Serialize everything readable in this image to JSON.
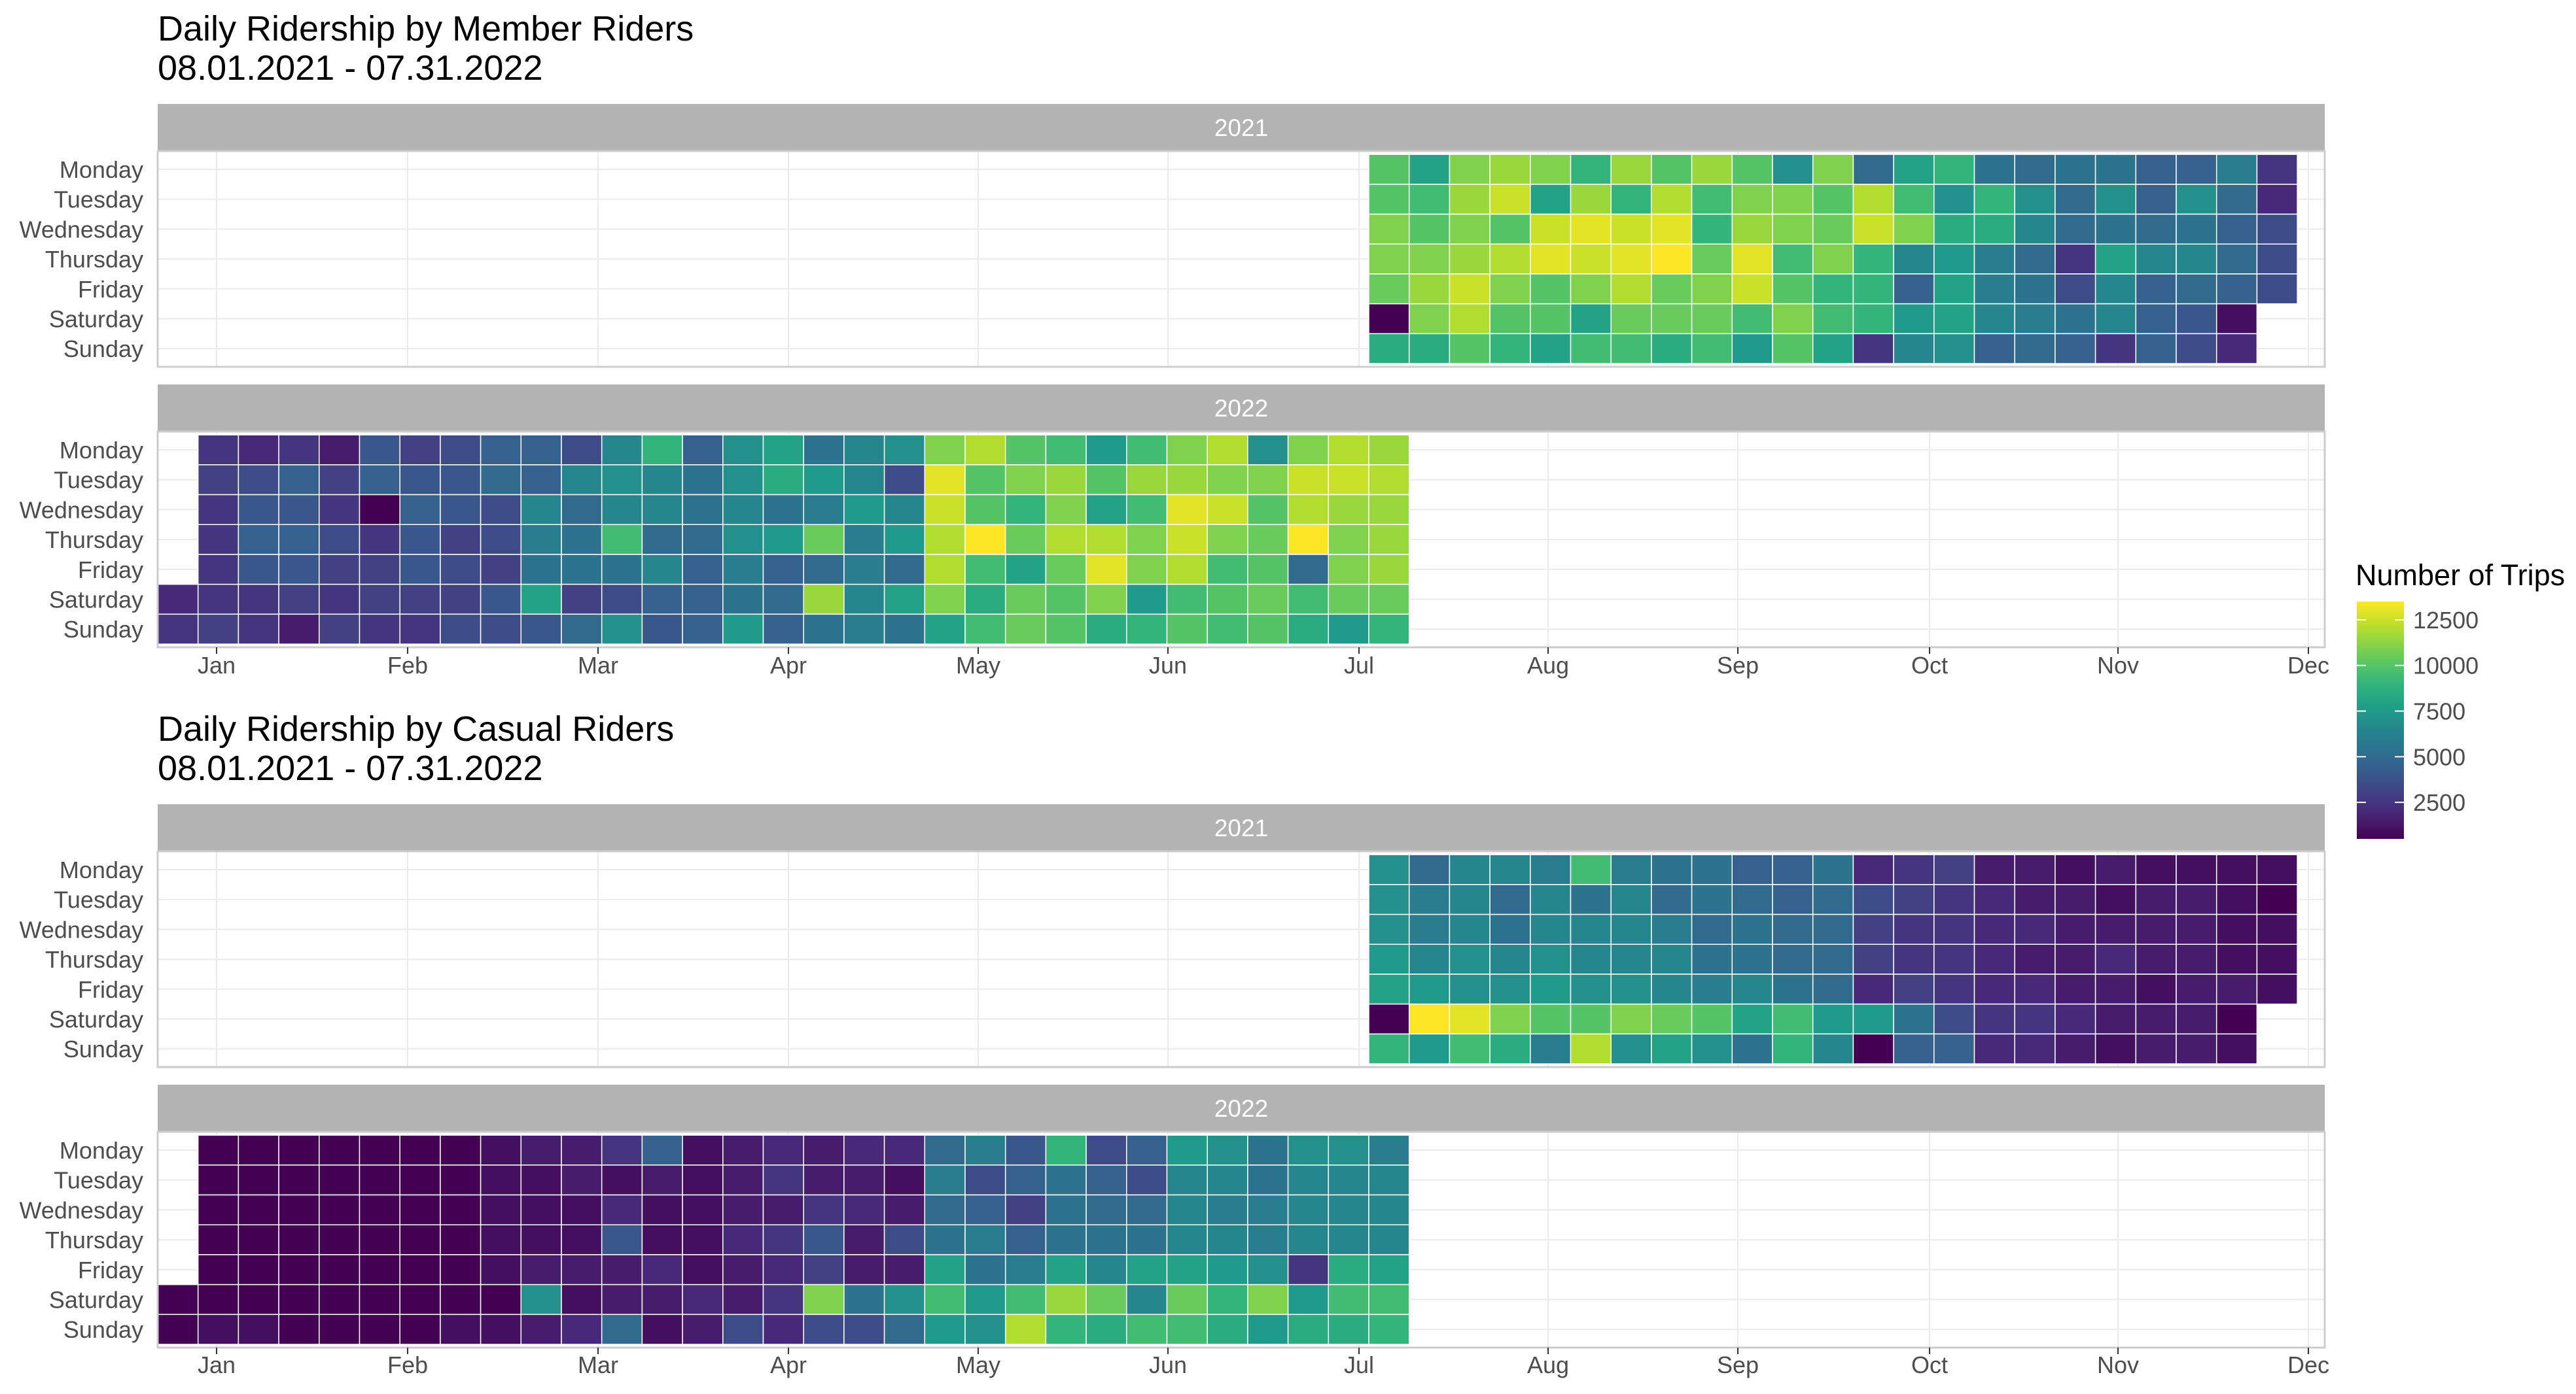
{
  "chart_data": [
    {
      "type": "heatmap",
      "title": "Daily Ridership by Member Riders",
      "subtitle": " 08.01.2021 - 07.31.2022",
      "rows": [
        "Monday",
        "Tuesday",
        "Wednesday",
        "Thursday",
        "Friday",
        "Saturday",
        "Sunday"
      ],
      "x_ticks": [
        "Jan",
        "Feb",
        "Mar",
        "Apr",
        "May",
        "Jun",
        "Jul",
        "Aug",
        "Sep",
        "Oct",
        "Nov",
        "Dec"
      ],
      "panels": [
        {
          "label": "2021",
          "start_week": 31,
          "values": [
            [
              10000,
              8000,
              11000,
              11500,
              11000,
              9000,
              11500,
              10000,
              11500,
              10000,
              7000,
              11000,
              5000,
              8000,
              9000,
              5500,
              5000,
              5500,
              5500,
              4500,
              4500,
              6000,
              2500
            ],
            [
              10000,
              9500,
              11500,
              12500,
              8000,
              11500,
              9000,
              12000,
              9500,
              11000,
              11000,
              10000,
              12000,
              9500,
              7000,
              9000,
              7000,
              5000,
              7000,
              4500,
              7000,
              5000,
              2000
            ],
            [
              11000,
              10000,
              11000,
              10000,
              12500,
              13000,
              12500,
              13000,
              9000,
              11500,
              11000,
              10500,
              12500,
              11000,
              8500,
              8500,
              6500,
              5000,
              5500,
              5000,
              5500,
              4500,
              3500
            ],
            [
              11000,
              11000,
              11500,
              12000,
              13000,
              12500,
              13000,
              13500,
              10500,
              13000,
              9500,
              11000,
              9000,
              6500,
              7500,
              6000,
              5000,
              2500,
              8000,
              6500,
              6500,
              5000,
              3500
            ],
            [
              10500,
              11500,
              12500,
              11000,
              10000,
              11000,
              12000,
              10500,
              11000,
              12500,
              10000,
              9000,
              9000,
              4500,
              8000,
              6000,
              5500,
              3500,
              6500,
              4500,
              5000,
              4500,
              3500
            ],
            [
              500,
              11000,
              12000,
              10000,
              10000,
              8000,
              10500,
              10500,
              10500,
              9500,
              11000,
              9500,
              9000,
              7500,
              8000,
              6500,
              6000,
              5500,
              6500,
              4500,
              4000,
              1000,
              null
            ],
            [
              8500,
              8500,
              10000,
              9000,
              8000,
              9500,
              9500,
              8500,
              9500,
              7500,
              10000,
              8000,
              2500,
              6500,
              7000,
              4500,
              5000,
              4500,
              2500,
              4500,
              3500,
              2000,
              null
            ]
          ]
        },
        {
          "label": "2022",
          "start_week": 1,
          "values": [
            [
              null,
              2500,
              2000,
              2500,
              1500,
              4000,
              3000,
              3500,
              4500,
              4500,
              3500,
              6500,
              9000,
              4500,
              7000,
              8000,
              5500,
              6500,
              7000,
              11000,
              12000,
              10000,
              9500,
              7500,
              9500,
              11000,
              12000,
              7000,
              11000,
              12000,
              11500
            ],
            [
              null,
              3000,
              3500,
              4500,
              3000,
              4500,
              4000,
              4000,
              5000,
              4500,
              6500,
              7000,
              6500,
              5500,
              7000,
              8500,
              7500,
              6500,
              3500,
              13000,
              10000,
              11000,
              11500,
              10000,
              11500,
              11500,
              11000,
              11000,
              12500,
              12500,
              12000
            ],
            [
              null,
              2500,
              4000,
              4000,
              2500,
              500,
              4500,
              4000,
              3500,
              6500,
              5000,
              6500,
              6500,
              5500,
              6500,
              5500,
              6000,
              7500,
              6500,
              12500,
              10000,
              9000,
              11000,
              8000,
              9500,
              13000,
              12500,
              10000,
              12000,
              11500,
              11500
            ],
            [
              null,
              2500,
              4500,
              4500,
              3500,
              2500,
              4000,
              3000,
              3500,
              6000,
              5500,
              9500,
              5000,
              5000,
              7000,
              7500,
              10500,
              6000,
              7500,
              12000,
              13500,
              10500,
              12000,
              12000,
              11000,
              12500,
              11000,
              10500,
              13500,
              11000,
              11500
            ],
            [
              null,
              2500,
              4000,
              4000,
              3000,
              3000,
              4000,
              3500,
              3000,
              5500,
              5500,
              5500,
              6500,
              4500,
              6000,
              4500,
              5000,
              6000,
              5000,
              12000,
              9500,
              8000,
              10500,
              13000,
              11000,
              12000,
              9500,
              10000,
              5000,
              11000,
              11500
            ],
            [
              2000,
              2500,
              2500,
              3000,
              2500,
              3000,
              3000,
              3000,
              4000,
              8000,
              3000,
              3500,
              4500,
              4500,
              5500,
              5000,
              11500,
              6500,
              8000,
              11000,
              8500,
              10500,
              10000,
              11000,
              7500,
              9500,
              10000,
              10500,
              9500,
              10500,
              10500
            ],
            [
              2500,
              3000,
              2500,
              1500,
              3000,
              2500,
              2500,
              3500,
              3500,
              4000,
              5000,
              7000,
              4000,
              4500,
              7500,
              4500,
              5500,
              6000,
              5500,
              8000,
              9500,
              10500,
              10000,
              8500,
              9000,
              10000,
              9500,
              10000,
              8500,
              7500,
              9000
            ]
          ]
        }
      ]
    },
    {
      "type": "heatmap",
      "title": "Daily Ridership by Casual Riders",
      "subtitle": " 08.01.2021 - 07.31.2022",
      "rows": [
        "Monday",
        "Tuesday",
        "Wednesday",
        "Thursday",
        "Friday",
        "Saturday",
        "Sunday"
      ],
      "x_ticks": [
        "Jan",
        "Feb",
        "Mar",
        "Apr",
        "May",
        "Jun",
        "Jul",
        "Aug",
        "Sep",
        "Oct",
        "Nov",
        "Dec"
      ],
      "panels": [
        {
          "label": "2021",
          "start_week": 31,
          "values": [
            [
              7000,
              5000,
              6500,
              6500,
              6000,
              9500,
              6000,
              5500,
              5500,
              4500,
              4500,
              5500,
              2000,
              2500,
              3000,
              1500,
              1500,
              1000,
              1500,
              1000,
              1000,
              1000,
              1000
            ],
            [
              7000,
              6000,
              6500,
              5000,
              6500,
              5500,
              6500,
              5000,
              5500,
              5000,
              4500,
              5000,
              3500,
              3000,
              2500,
              2000,
              1500,
              1500,
              1000,
              1500,
              1500,
              1000,
              500
            ],
            [
              7000,
              6000,
              6500,
              5500,
              6500,
              6500,
              6500,
              6000,
              5000,
              5500,
              5000,
              5000,
              3000,
              2500,
              2500,
              2000,
              2000,
              1500,
              1500,
              1500,
              1500,
              1000,
              1000
            ],
            [
              7500,
              6500,
              7000,
              6500,
              7000,
              6500,
              6500,
              6500,
              5500,
              5500,
              5000,
              5000,
              3000,
              2500,
              2500,
              2000,
              1500,
              1500,
              2000,
              1500,
              1500,
              1000,
              1000
            ],
            [
              8000,
              7500,
              7000,
              7000,
              7500,
              7000,
              7000,
              6500,
              6000,
              6500,
              5500,
              5000,
              2000,
              3000,
              2500,
              2000,
              2000,
              1500,
              1500,
              1000,
              1500,
              1500,
              1000
            ],
            [
              500,
              13500,
              13000,
              11000,
              10000,
              10000,
              11000,
              10500,
              10000,
              8000,
              9500,
              7500,
              7500,
              5500,
              3500,
              2500,
              2500,
              2000,
              1500,
              1500,
              1500,
              500,
              null
            ],
            [
              9000,
              7500,
              9500,
              8500,
              6000,
              12000,
              7000,
              8000,
              7000,
              5500,
              9000,
              6500,
              500,
              4500,
              4500,
              2000,
              2000,
              1500,
              1000,
              1500,
              1500,
              1000,
              null
            ]
          ]
        },
        {
          "label": "2022",
          "start_week": 1,
          "values": [
            [
              null,
              500,
              500,
              500,
              500,
              500,
              500,
              500,
              1000,
              1500,
              1500,
              2500,
              4500,
              1000,
              1500,
              2000,
              1500,
              2000,
              2000,
              5000,
              6000,
              4000,
              9000,
              3500,
              4500,
              7500,
              7000,
              5500,
              7000,
              7000,
              6000
            ],
            [
              null,
              500,
              500,
              500,
              500,
              500,
              500,
              500,
              1000,
              1000,
              1500,
              1000,
              1500,
              1000,
              1500,
              2500,
              1500,
              1500,
              1000,
              6000,
              3500,
              4500,
              5500,
              4500,
              3500,
              6500,
              6500,
              5500,
              6500,
              6500,
              6500
            ],
            [
              null,
              500,
              500,
              500,
              500,
              500,
              500,
              500,
              1000,
              1000,
              1000,
              2000,
              1000,
              1000,
              1500,
              1500,
              2500,
              2000,
              1500,
              5000,
              4500,
              3000,
              5500,
              5000,
              5000,
              6500,
              6000,
              6000,
              6500,
              6500,
              6500
            ],
            [
              null,
              500,
              500,
              500,
              500,
              500,
              500,
              500,
              1000,
              1000,
              1000,
              4000,
              1000,
              1000,
              2000,
              2500,
              4000,
              1500,
              3500,
              5500,
              6000,
              4500,
              5500,
              5500,
              5500,
              6500,
              6500,
              6000,
              6500,
              6500,
              6500
            ],
            [
              null,
              500,
              500,
              500,
              500,
              500,
              500,
              500,
              1000,
              1500,
              1500,
              1500,
              2000,
              1000,
              1500,
              2000,
              3000,
              1500,
              1500,
              8000,
              5500,
              6000,
              8000,
              6500,
              8000,
              8000,
              7500,
              7000,
              2500,
              8500,
              8000
            ],
            [
              500,
              500,
              500,
              500,
              500,
              500,
              500,
              500,
              500,
              7000,
              1000,
              1500,
              1500,
              2000,
              1500,
              2500,
              11000,
              5500,
              7000,
              9500,
              7500,
              9500,
              11500,
              10500,
              6500,
              10500,
              9000,
              11000,
              7500,
              9500,
              9500
            ],
            [
              500,
              1000,
              1000,
              500,
              500,
              500,
              500,
              1000,
              1000,
              1500,
              2000,
              5000,
              1000,
              1500,
              3500,
              2000,
              3500,
              3500,
              5000,
              7500,
              7000,
              12000,
              9000,
              8500,
              9500,
              9500,
              8500,
              7500,
              8500,
              8500,
              9000
            ]
          ]
        }
      ]
    }
  ],
  "legend": {
    "title": "Number of Trips",
    "ticks": [
      12500,
      10000,
      7500,
      5000,
      2500
    ],
    "range": [
      500,
      13500
    ],
    "position": "right"
  },
  "colors": {
    "panel_strip": "#b3b3b3",
    "strip_text": "#ffffff",
    "grid": "#ebebeb",
    "panel_border": "#cccccc",
    "axis_text": "#4d4d4d",
    "title_text": "#000000",
    "palette": "viridis"
  }
}
